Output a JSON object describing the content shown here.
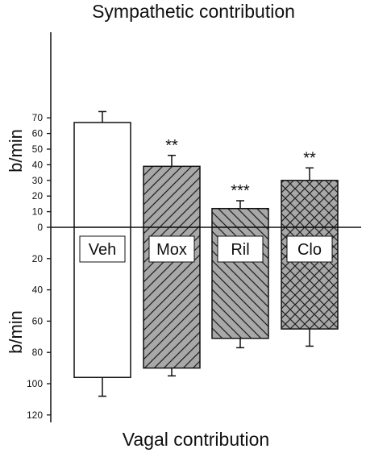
{
  "chart_data": {
    "type": "bar",
    "title": "Sympathetic contribution",
    "xlabel": "Vagal contribution",
    "ylabel_top": "b/min",
    "ylabel_bottom": "b/min",
    "ylim": [
      -120,
      75
    ],
    "tick_labels_top": [
      "70",
      "60",
      "50",
      "40",
      "30",
      "20",
      "10",
      "0"
    ],
    "tick_labels_bottom": [
      "20",
      "40",
      "60",
      "80",
      "100",
      "120"
    ],
    "categories": [
      "Veh",
      "Mox",
      "Ril",
      "Clo"
    ],
    "series": [
      {
        "values": [
          67,
          39,
          12,
          30
        ],
        "errors": [
          7,
          7,
          5,
          8
        ]
      },
      {
        "values": [
          -96,
          -90,
          -71,
          -65
        ],
        "errors": [
          12,
          5,
          6,
          11
        ]
      }
    ],
    "fills": [
      "white",
      "hatch-diagonal",
      "hatch-diagonal-reverse",
      "crosshatch"
    ],
    "significance": [
      "",
      "**",
      "***",
      "**"
    ],
    "grid": false,
    "legend": "none"
  }
}
